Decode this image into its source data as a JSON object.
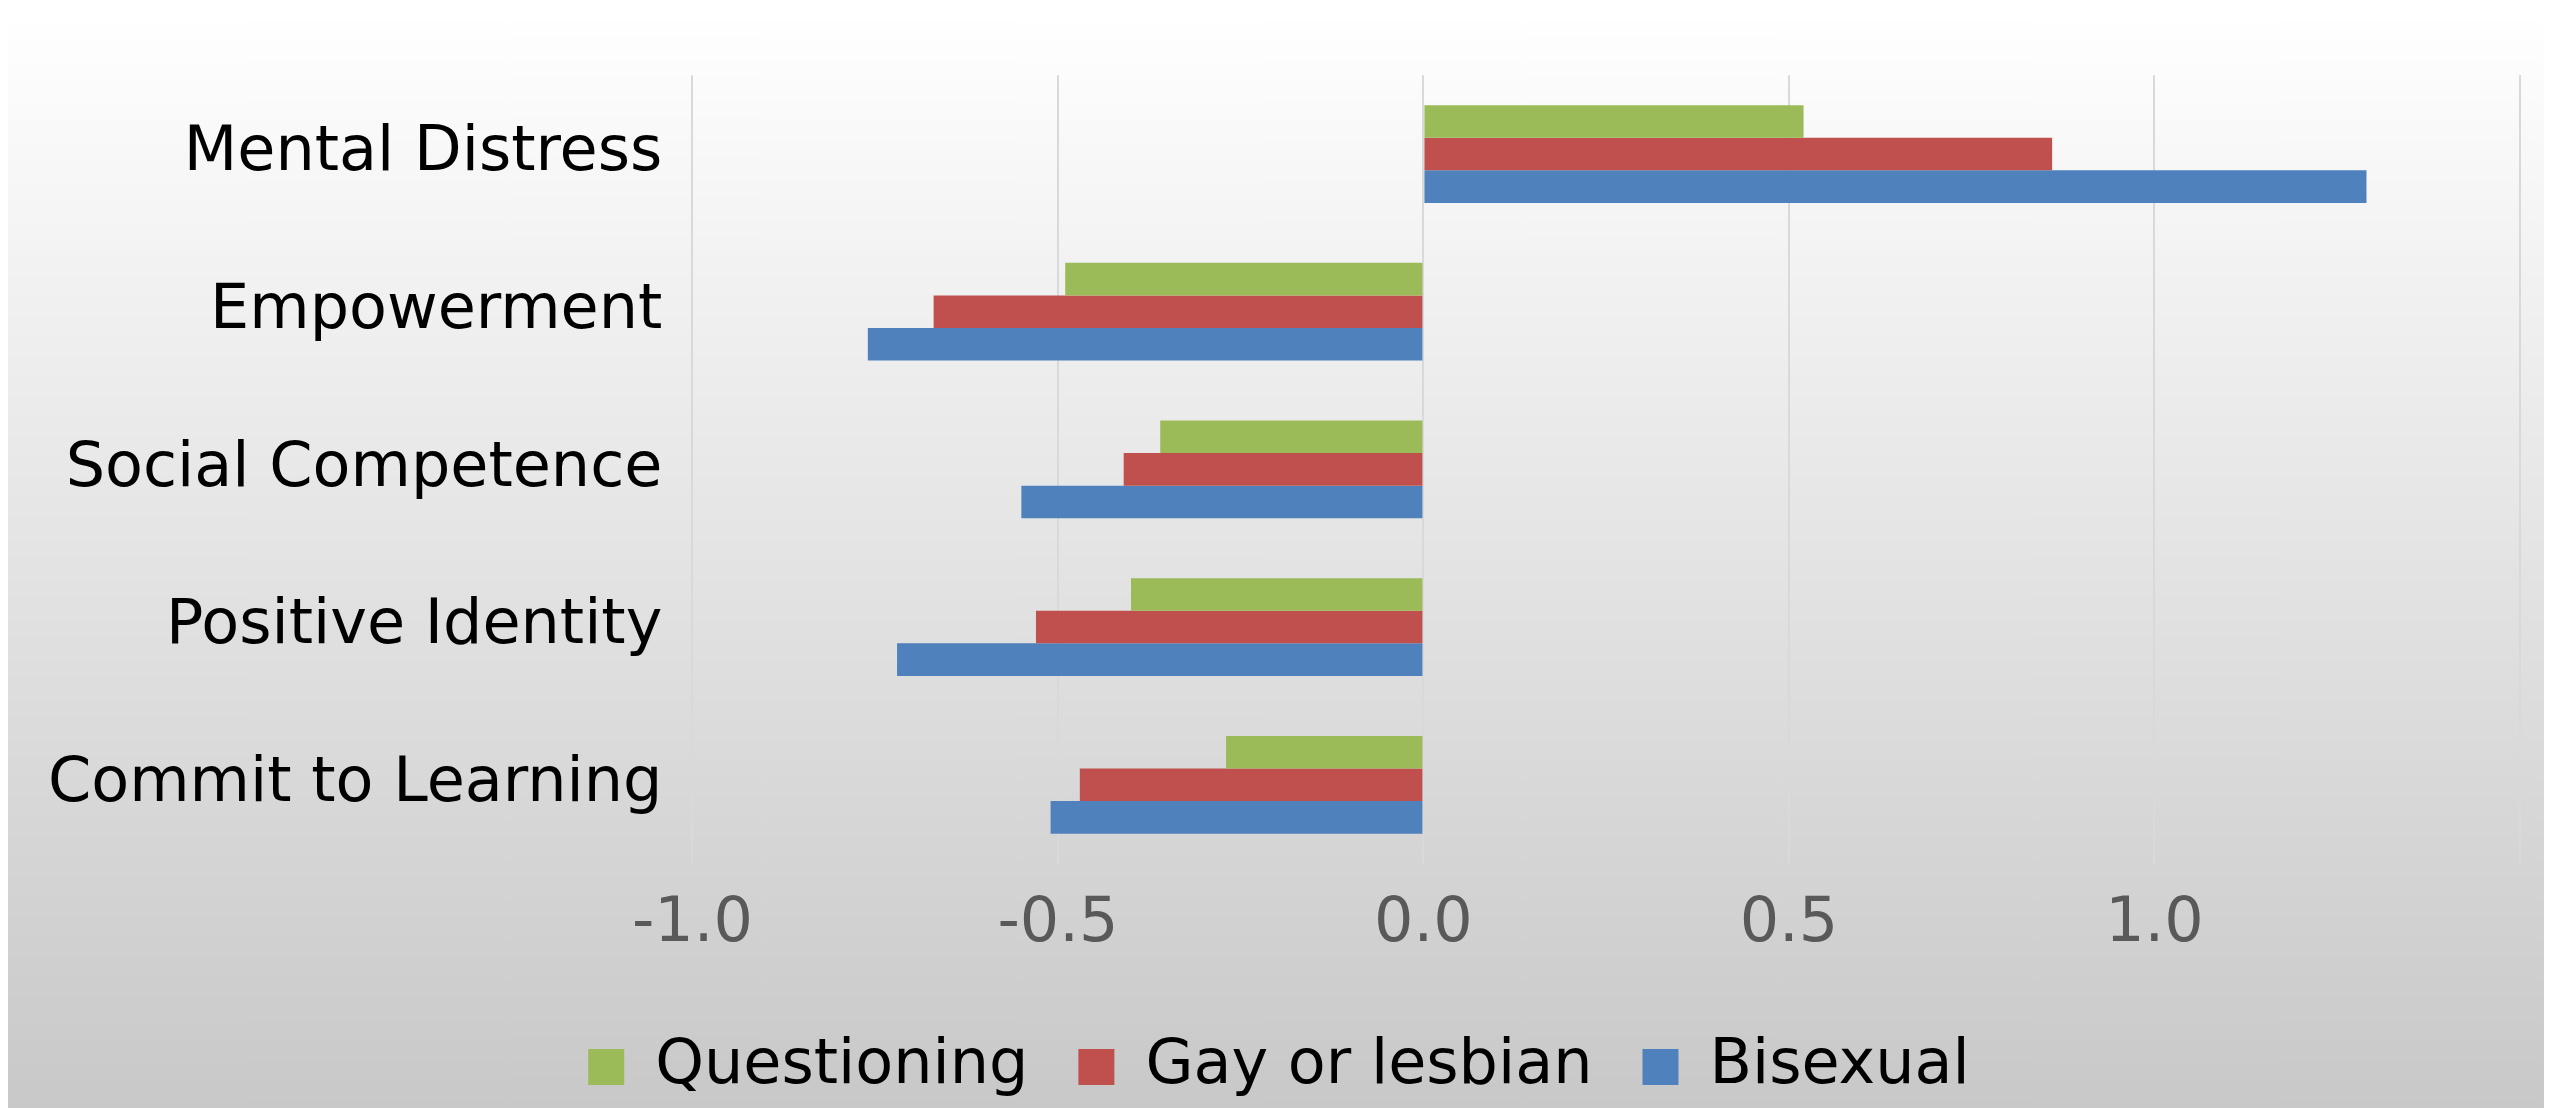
{
  "chart_data": {
    "type": "bar",
    "orientation": "horizontal",
    "categories": [
      "Mental Distress",
      "Empowerment",
      "Social Competence",
      "Positive Identity",
      "Commit to Learning"
    ],
    "series": [
      {
        "name": "Questioning",
        "color": "#9bbb59",
        "values": [
          0.52,
          -0.49,
          -0.36,
          -0.4,
          -0.27
        ]
      },
      {
        "name": "Gay or lesbian",
        "color": "#c0504d",
        "values": [
          0.86,
          -0.67,
          -0.41,
          -0.53,
          -0.47
        ]
      },
      {
        "name": "Bisexual",
        "color": "#4f81bd",
        "values": [
          1.29,
          -0.76,
          -0.55,
          -0.72,
          -0.51
        ]
      }
    ],
    "xlim": [
      -1,
      1.5
    ],
    "xticks": [
      {
        "value": -1,
        "label": "-1.0"
      },
      {
        "value": -0.5,
        "label": "-0.5"
      },
      {
        "value": 0,
        "label": "0.0"
      },
      {
        "value": 0.5,
        "label": "0.5"
      },
      {
        "value": 1,
        "label": "1.0"
      },
      {
        "value": 1.5,
        "label": null
      }
    ],
    "grid": "x",
    "legend": "bottom"
  }
}
